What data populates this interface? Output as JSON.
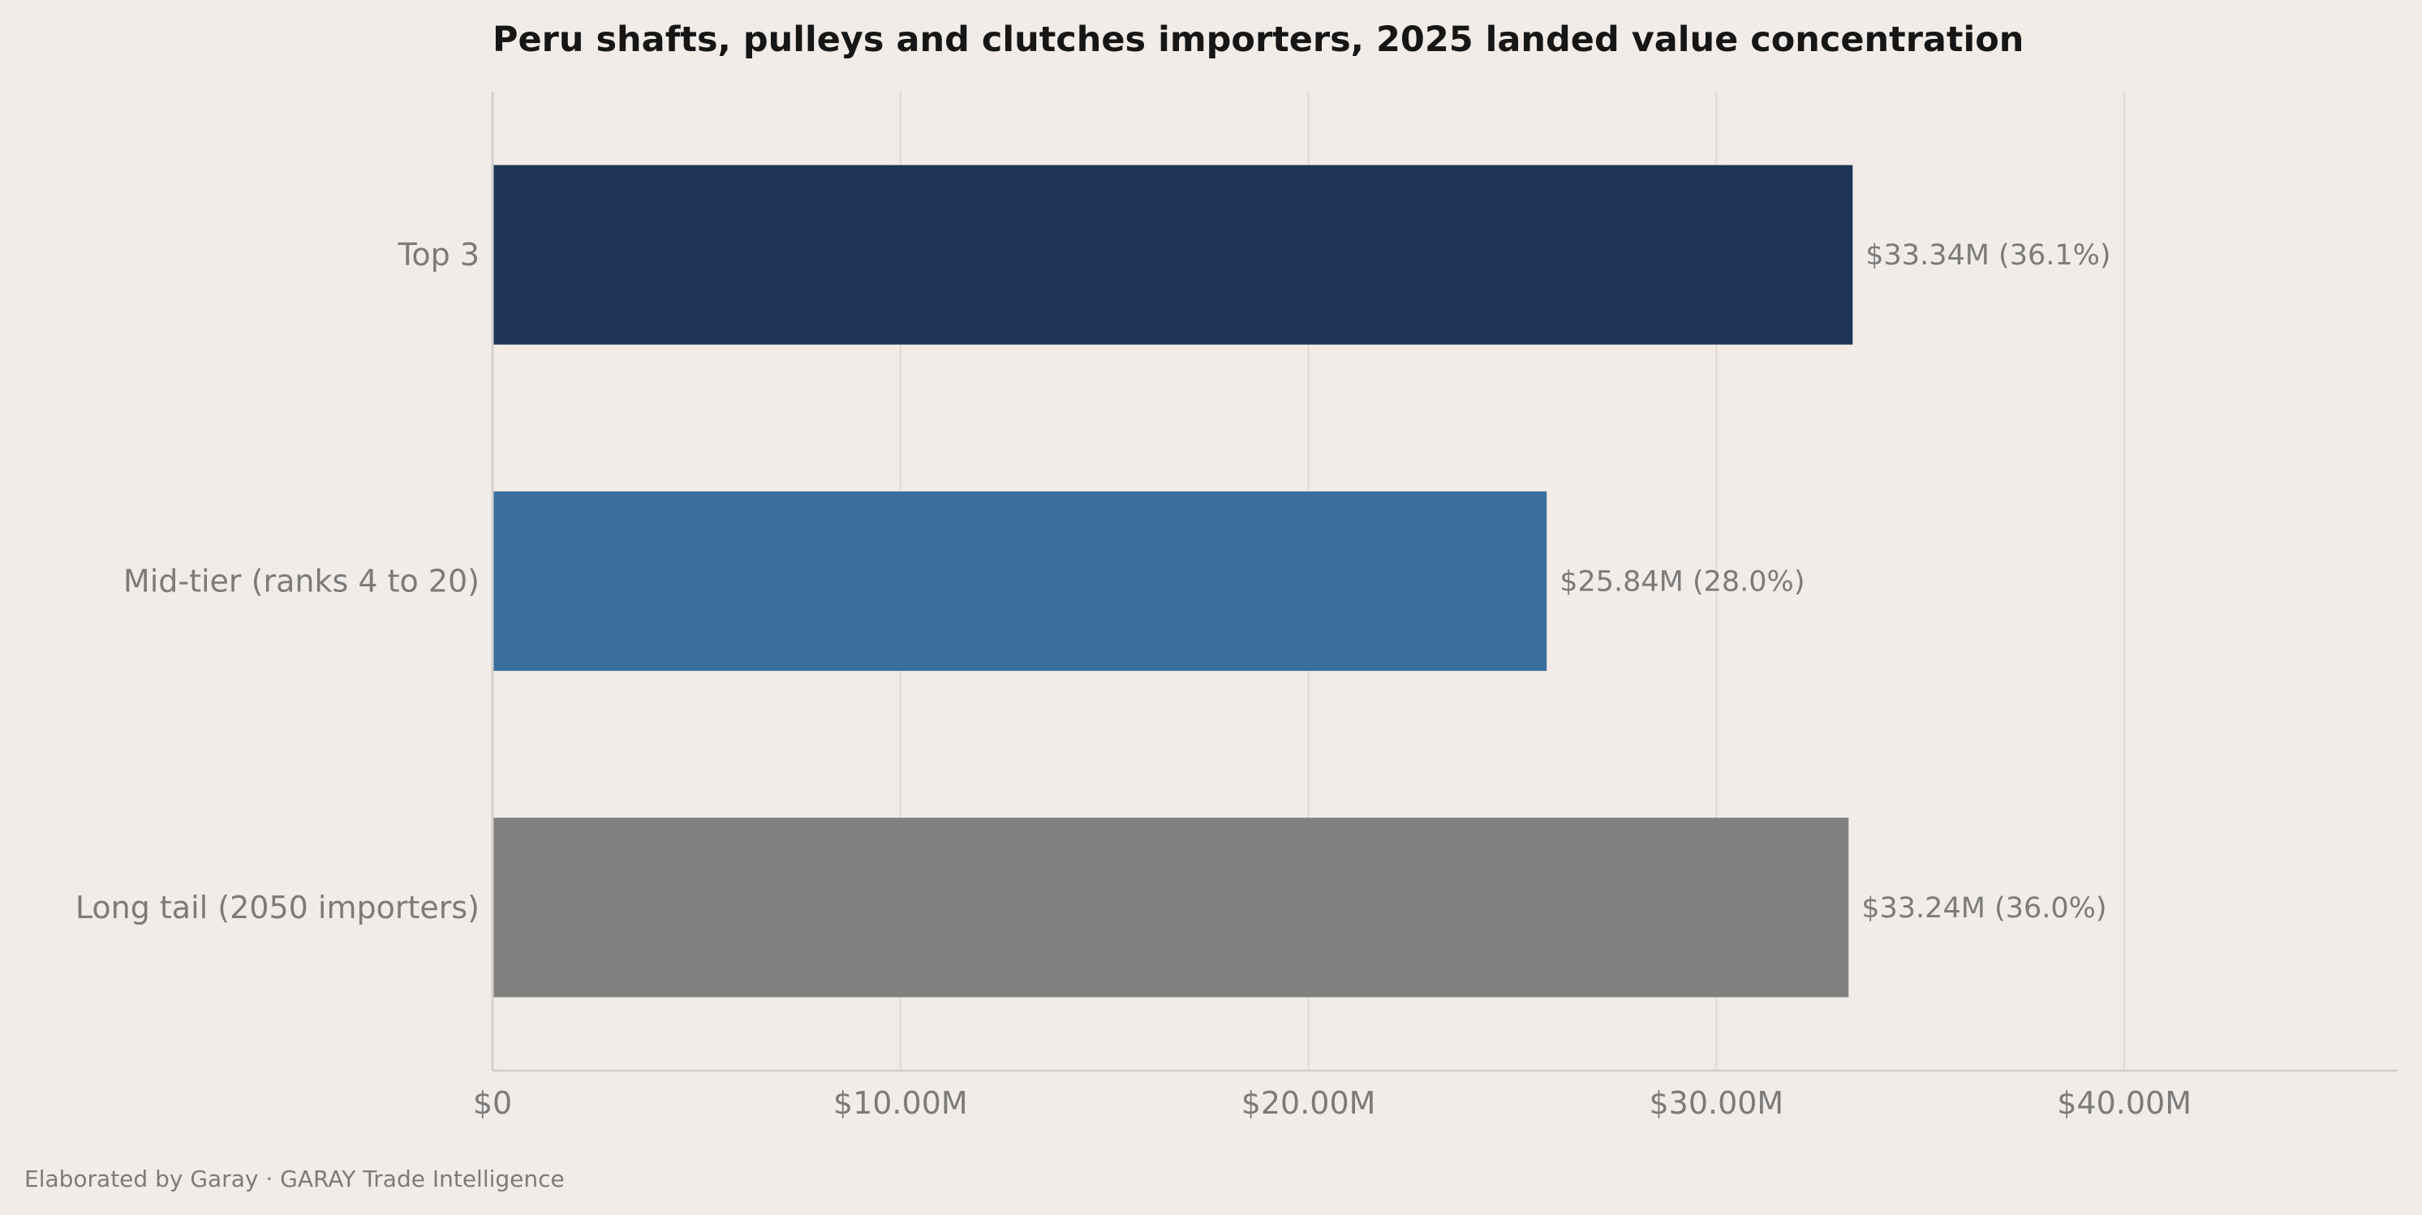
{
  "chart_data": {
    "type": "bar",
    "orientation": "horizontal",
    "title": "Peru shafts, pulleys and clutches importers, 2025 landed value concentration",
    "categories": [
      "Top 3",
      "Mid-tier (ranks 4 to 20)",
      "Long tail (2050 importers)"
    ],
    "values": [
      33.34,
      25.84,
      33.24
    ],
    "value_labels": [
      "$33.34M  (36.1%)",
      "$25.84M  (28.0%)",
      "$33.24M  (36.0%)"
    ],
    "colors": [
      "#1e3556",
      "#3a6e9c",
      "#808080"
    ],
    "xticks": [
      0,
      10,
      20,
      30,
      40
    ],
    "xtick_labels": [
      "$0",
      "$10.00M",
      "$20.00M",
      "$30.00M",
      "$40.00M"
    ],
    "xlim": [
      0,
      46.7
    ],
    "grid": "vertical",
    "unit": "USD millions"
  },
  "footer": {
    "credit": "Elaborated by Garay  ·  GARAY Trade Intelligence"
  }
}
